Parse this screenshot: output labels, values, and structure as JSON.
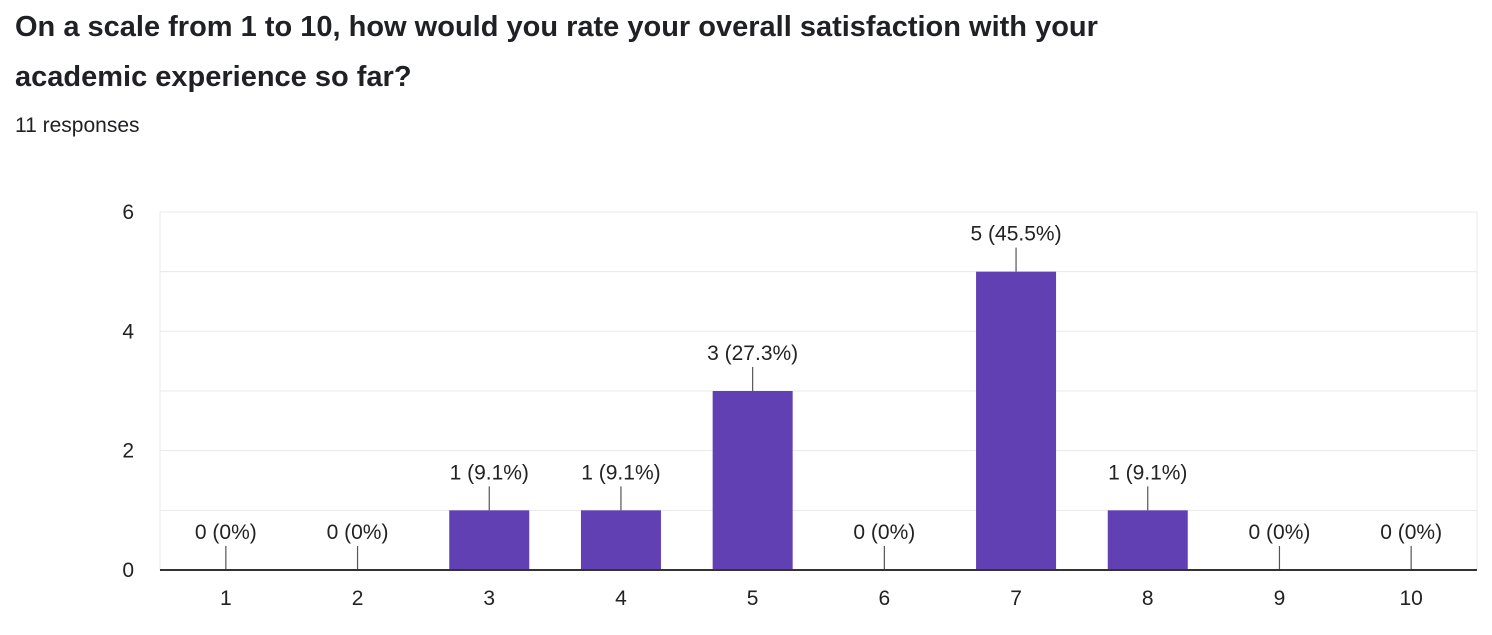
{
  "question": {
    "title": "On a scale from 1 to 10, how would you rate your overall satisfaction with your academic experience so far?",
    "response_count": "11 responses"
  },
  "colors": {
    "bar": "#6140b3",
    "grid": "#e8e8e8",
    "axis": "#333333",
    "text": "#222222"
  },
  "chart_data": {
    "type": "bar",
    "title": "",
    "xlabel": "",
    "ylabel": "",
    "categories": [
      "1",
      "2",
      "3",
      "4",
      "5",
      "6",
      "7",
      "8",
      "9",
      "10"
    ],
    "values": [
      0,
      0,
      1,
      1,
      3,
      0,
      5,
      1,
      0,
      0
    ],
    "data_labels": [
      "0 (0%)",
      "0 (0%)",
      "1 (9.1%)",
      "1 (9.1%)",
      "3 (27.3%)",
      "0 (0%)",
      "5 (45.5%)",
      "1 (9.1%)",
      "0 (0%)",
      "0 (0%)"
    ],
    "ylim": [
      0,
      6
    ],
    "y_ticks": [
      0,
      2,
      4,
      6
    ],
    "grid": true,
    "legend": "none"
  }
}
